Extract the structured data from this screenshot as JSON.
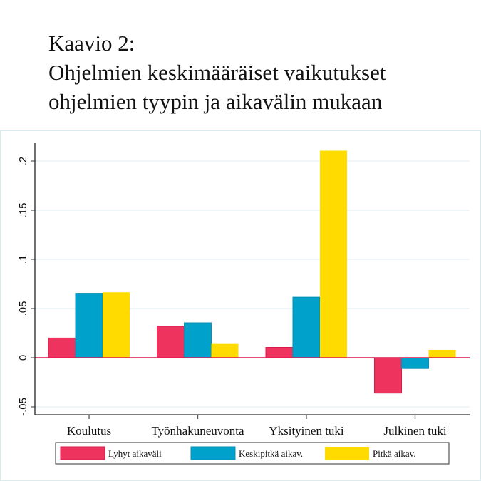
{
  "title_lines": [
    "Kaavio 2:",
    "Ohjelmien keskimääräiset vaikutukset",
    "ohjelmien tyypin ja aikavälin mukaan"
  ],
  "chart_data": {
    "type": "bar",
    "title": "Kaavio 2: Ohjelmien keskimääräiset vaikutukset ohjelmien tyypin ja aikavälin mukaan",
    "xlabel": "",
    "ylabel": "",
    "categories": [
      "Koulutus",
      "Työnhakuneuvonta",
      "Yksityinen tuki",
      "Julkinen tuki"
    ],
    "series": [
      {
        "name": "Lyhyt aikaväli",
        "color": "#ee345e",
        "values": [
          0.02,
          0.032,
          0.0105,
          -0.036
        ]
      },
      {
        "name": "Keskipitkä aikav.",
        "color": "#00a2cb",
        "values": [
          0.0655,
          0.0355,
          0.0615,
          -0.011
        ]
      },
      {
        "name": "Pitkä  aikav.",
        "color": "#ffdb00",
        "values": [
          0.0665,
          0.014,
          0.2105,
          0.008
        ]
      }
    ],
    "yticks": [
      "-.05",
      "0",
      ".05",
      ".1",
      ".15",
      ".2"
    ],
    "ytick_values": [
      -0.05,
      0,
      0.05,
      0.1,
      0.15,
      0.2
    ],
    "ylim": [
      -0.055,
      0.22
    ],
    "grid": true,
    "legend_position": "bottom"
  }
}
